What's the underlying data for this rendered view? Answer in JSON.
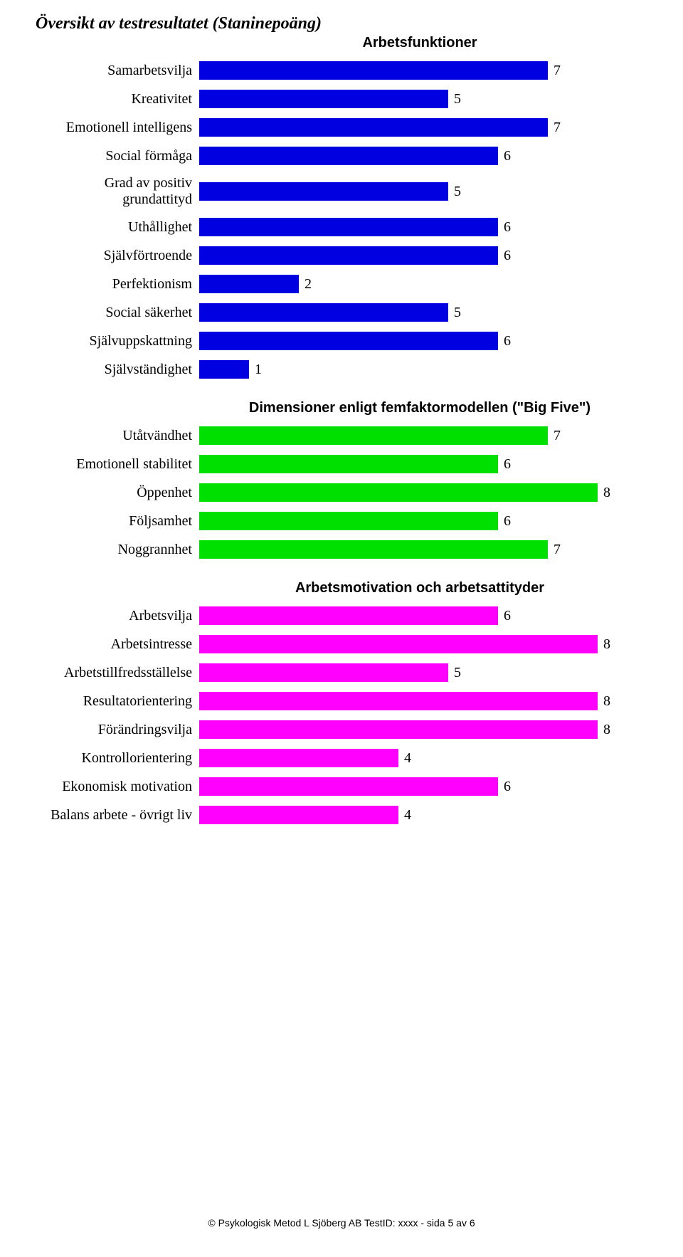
{
  "page_title": "Översikt av testresultatet (Staninepoäng)",
  "max_value": 9,
  "text_color": "#000000",
  "background_color": "#ffffff",
  "label_fontsize": 20,
  "value_fontsize": 20,
  "title_fontsize": 24,
  "section_title_fontsize": 20,
  "sections": [
    {
      "title": "Arbetsfunktioner",
      "bar_color": "#0000e0",
      "items": [
        {
          "label": "Samarbetsvilja",
          "value": 7
        },
        {
          "label": "Kreativitet",
          "value": 5
        },
        {
          "label": "Emotionell intelligens",
          "value": 7
        },
        {
          "label": "Social förmåga",
          "value": 6
        },
        {
          "label": "Grad av positiv grundattityd",
          "value": 5
        },
        {
          "label": "Uthållighet",
          "value": 6
        },
        {
          "label": "Självförtroende",
          "value": 6
        },
        {
          "label": "Perfektionism",
          "value": 2
        },
        {
          "label": "Social säkerhet",
          "value": 5
        },
        {
          "label": "Självuppskattning",
          "value": 6
        },
        {
          "label": "Självständighet",
          "value": 1
        }
      ]
    },
    {
      "title": "Dimensioner enligt femfaktormodellen (\"Big Five\")",
      "bar_color": "#00e000",
      "items": [
        {
          "label": "Utåtvändhet",
          "value": 7
        },
        {
          "label": "Emotionell stabilitet",
          "value": 6
        },
        {
          "label": "Öppenhet",
          "value": 8
        },
        {
          "label": "Följsamhet",
          "value": 6
        },
        {
          "label": "Noggrannhet",
          "value": 7
        }
      ]
    },
    {
      "title": "Arbetsmotivation och arbetsattityder",
      "bar_color": "#ff00ff",
      "items": [
        {
          "label": "Arbetsvilja",
          "value": 6
        },
        {
          "label": "Arbetsintresse",
          "value": 8
        },
        {
          "label": "Arbetstillfredsställelse",
          "value": 5
        },
        {
          "label": "Resultatorientering",
          "value": 8
        },
        {
          "label": "Förändringsvilja",
          "value": 8
        },
        {
          "label": "Kontrollorientering",
          "value": 4
        },
        {
          "label": "Ekonomisk motivation",
          "value": 6
        },
        {
          "label": "Balans arbete - övrigt liv",
          "value": 4
        }
      ]
    }
  ],
  "footer": "© Psykologisk Metod L Sjöberg AB     TestID: xxxx - sida 5 av 6"
}
